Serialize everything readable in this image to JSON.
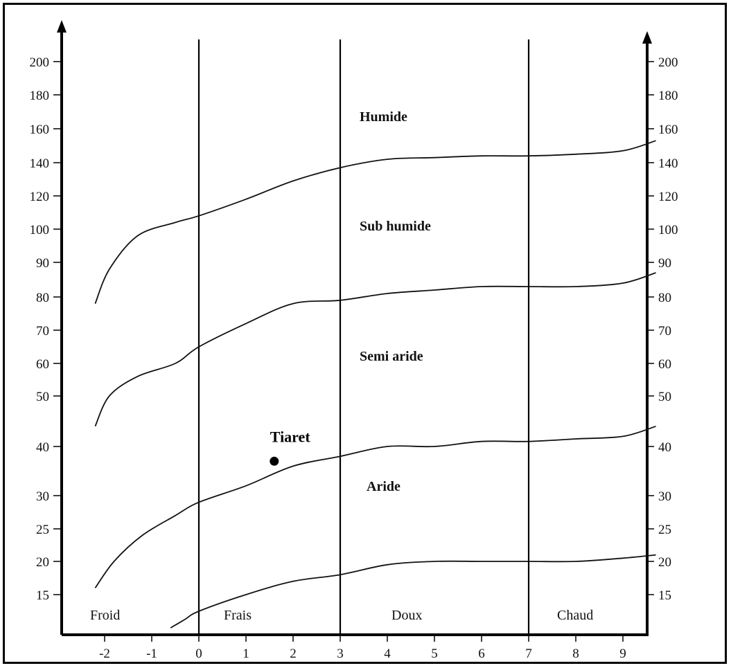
{
  "chart_data": {
    "type": "line",
    "x": {
      "ticks": [
        "-2",
        "-1",
        "0",
        "1",
        "2",
        "3",
        "4",
        "5",
        "6",
        "7",
        "8",
        "9"
      ],
      "range": [
        -2.7,
        9.8
      ]
    },
    "y": {
      "ticks": [
        "15",
        "20",
        "25",
        "30",
        "40",
        "50",
        "60",
        "70",
        "80",
        "90",
        "100",
        "120",
        "140",
        "160",
        "180",
        "200"
      ],
      "scale": "nonlinear"
    },
    "zone_boundaries": [
      0,
      3,
      7
    ],
    "zones": [
      "Froid",
      "Frais",
      "Doux",
      "Chaud"
    ],
    "climate_stages": [
      "Humide",
      "Sub humide",
      "Semi aride",
      "Aride"
    ],
    "series": [
      {
        "x": [
          -2.2,
          -1.9,
          -1.3,
          -0.5,
          0,
          1,
          2,
          3,
          4,
          5,
          6,
          7,
          8,
          9,
          9.7
        ],
        "y": [
          78,
          88,
          98,
          104,
          108,
          118,
          129,
          137,
          142,
          143,
          144,
          144,
          145,
          147,
          153
        ]
      },
      {
        "x": [
          -2.2,
          -1.9,
          -1.3,
          -0.5,
          0,
          1,
          2,
          3,
          4,
          5,
          6,
          7,
          8,
          9,
          9.7
        ],
        "y": [
          44,
          50,
          56,
          60,
          65,
          72,
          78,
          79,
          81,
          82,
          83,
          83,
          83,
          84,
          87
        ]
      },
      {
        "x": [
          -2.2,
          -1.8,
          -1.2,
          -0.5,
          0,
          1,
          2,
          3,
          4,
          5,
          6,
          7,
          8,
          9,
          9.7
        ],
        "y": [
          16,
          20,
          24,
          27,
          29,
          32,
          36,
          38,
          40,
          40,
          41,
          41,
          41.5,
          42,
          44
        ]
      },
      {
        "x": [
          -0.6,
          -0.3,
          0,
          1,
          2,
          3,
          4,
          5,
          6,
          7,
          8,
          9,
          9.7
        ],
        "y": [
          11,
          12,
          13,
          15,
          17,
          18,
          19.5,
          20,
          20,
          20,
          20,
          20.5,
          21
        ]
      }
    ],
    "stations": [
      {
        "name": "Tiaret",
        "x": 1.6,
        "y": 37
      }
    ]
  }
}
